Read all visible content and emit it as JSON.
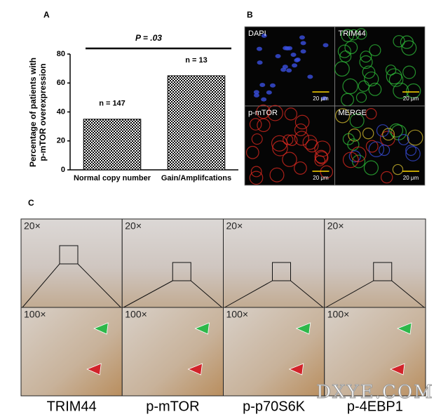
{
  "chart_data": {
    "type": "bar",
    "panel_label": "A",
    "categories": [
      "Normal copy number",
      "Gain/Amplifcations"
    ],
    "values": [
      35,
      65
    ],
    "color": "#000000",
    "bar_annotations": [
      "n = 147",
      "n = 13"
    ],
    "significance": "P = .03",
    "ylabel": [
      "Percentage of patients with",
      "p-mTOR overexpression"
    ],
    "ylim": [
      0,
      80
    ],
    "yticks": [
      0,
      20,
      40,
      60,
      80
    ]
  },
  "panel_b": {
    "label": "B",
    "channels": [
      "DAPI",
      "TRIM44",
      "p-mTOR",
      "MERGE"
    ],
    "scale_bars": [
      "20 μm",
      "20 μm",
      "20 μm",
      "20 μm"
    ]
  },
  "panel_c": {
    "label": "C",
    "low_mag": [
      "20×",
      "20×",
      "20×",
      "20×"
    ],
    "high_mag": [
      "100×",
      "100×",
      "100×",
      "100×"
    ],
    "markers": [
      "TRIM44",
      "p-mTOR",
      "p-p70S6K",
      "p-4EBP1"
    ]
  },
  "watermark": "DXYE.COM"
}
